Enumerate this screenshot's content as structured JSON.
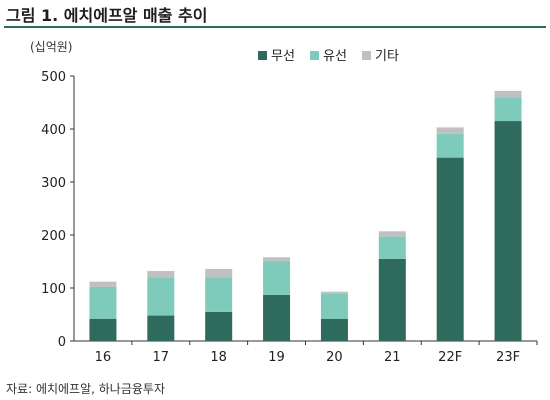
{
  "figure": {
    "title": "그림 1. 에치에프알 매출 추이",
    "unit": "(십억원)",
    "source": "자료: 에치에프알, 하나금융투자"
  },
  "colors": {
    "rule": "#2e6b5c",
    "wireless": "#2e6b5c",
    "wired": "#7fcbbb",
    "other": "#c0c0c0",
    "axis": "#333333"
  },
  "chart_data": {
    "type": "bar",
    "stacked": true,
    "categories": [
      "16",
      "17",
      "18",
      "19",
      "20",
      "21",
      "22F",
      "23F"
    ],
    "series": [
      {
        "name": "무선",
        "values": [
          42,
          48,
          55,
          87,
          42,
          155,
          346,
          415
        ]
      },
      {
        "name": "유선",
        "values": [
          60,
          72,
          65,
          63,
          48,
          42,
          45,
          45
        ]
      },
      {
        "name": "기타",
        "values": [
          10,
          12,
          16,
          8,
          3,
          10,
          12,
          12
        ]
      }
    ],
    "y_ticks": [
      0,
      100,
      200,
      300,
      400,
      500
    ],
    "ylim": [
      0,
      500
    ],
    "grid": false,
    "legend_position": "top-right"
  }
}
